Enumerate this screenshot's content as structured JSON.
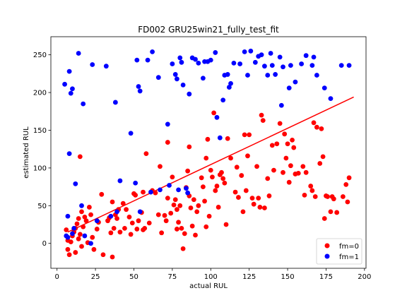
{
  "chart_data": {
    "type": "scatter",
    "title": "FD002 GRU25win21_fully_test_fit",
    "xlabel": "actual RUL",
    "ylabel": "estimated RUL",
    "xlim": [
      -4,
      201
    ],
    "ylim": [
      -33,
      274
    ],
    "xticks": [
      0,
      25,
      50,
      75,
      100,
      125,
      150,
      175,
      200
    ],
    "yticks": [
      0,
      50,
      100,
      150,
      200,
      250
    ],
    "grid": false,
    "legend_position": "lower right",
    "series": [
      {
        "name": "fm=0",
        "color": "#ff0000",
        "points": [
          [
            6,
            18
          ],
          [
            7,
            4
          ],
          [
            7,
            -8
          ],
          [
            8,
            -15
          ],
          [
            9,
            2
          ],
          [
            10,
            10
          ],
          [
            11,
            15
          ],
          [
            12,
            20
          ],
          [
            12,
            -12
          ],
          [
            13,
            26
          ],
          [
            14,
            33
          ],
          [
            14,
            6
          ],
          [
            15,
            115
          ],
          [
            15,
            12
          ],
          [
            16,
            42
          ],
          [
            16,
            -4
          ],
          [
            17,
            22
          ],
          [
            18,
            35
          ],
          [
            19,
            30
          ],
          [
            20,
            1
          ],
          [
            21,
            48
          ],
          [
            22,
            38
          ],
          [
            23,
            8
          ],
          [
            24,
            -8
          ],
          [
            26,
            19
          ],
          [
            27,
            28
          ],
          [
            29,
            65
          ],
          [
            30,
            -15
          ],
          [
            33,
            30
          ],
          [
            34,
            34
          ],
          [
            35,
            14
          ],
          [
            36,
            55
          ],
          [
            36,
            -18
          ],
          [
            37,
            20
          ],
          [
            38,
            38
          ],
          [
            39,
            33
          ],
          [
            40,
            45
          ],
          [
            41,
            15
          ],
          [
            43,
            53
          ],
          [
            44,
            20
          ],
          [
            45,
            45
          ],
          [
            47,
            35
          ],
          [
            48,
            12
          ],
          [
            49,
            27
          ],
          [
            50,
            66
          ],
          [
            51,
            64
          ],
          [
            52,
            19
          ],
          [
            53,
            30
          ],
          [
            55,
            41
          ],
          [
            56,
            68
          ],
          [
            56,
            18
          ],
          [
            57,
            20
          ],
          [
            58,
            119
          ],
          [
            60,
            27
          ],
          [
            62,
            70
          ],
          [
            64,
            67
          ],
          [
            66,
            38
          ],
          [
            67,
            102
          ],
          [
            68,
            14
          ],
          [
            70,
            37
          ],
          [
            71,
            30
          ],
          [
            72,
            60
          ],
          [
            72,
            134
          ],
          [
            74,
            40
          ],
          [
            75,
            88
          ],
          [
            76,
            51
          ],
          [
            77,
            58
          ],
          [
            78,
            45
          ],
          [
            78,
            19
          ],
          [
            79,
            28
          ],
          [
            80,
            50
          ],
          [
            81,
            20
          ],
          [
            82,
            -7
          ],
          [
            83,
            13
          ],
          [
            84,
            74
          ],
          [
            85,
            96
          ],
          [
            86,
            63
          ],
          [
            86,
            128
          ],
          [
            87,
            47
          ],
          [
            88,
            23
          ],
          [
            89,
            58
          ],
          [
            90,
            11
          ],
          [
            91,
            42
          ],
          [
            92,
            50
          ],
          [
            94,
            87
          ],
          [
            95,
            75
          ],
          [
            96,
            56
          ],
          [
            97,
            113
          ],
          [
            97,
            22
          ],
          [
            98,
            138
          ],
          [
            99,
            36
          ],
          [
            100,
            97
          ],
          [
            101,
            88
          ],
          [
            102,
            173
          ],
          [
            103,
            70
          ],
          [
            104,
            76
          ],
          [
            105,
            48
          ],
          [
            106,
            91
          ],
          [
            107,
            94
          ],
          [
            108,
            86
          ],
          [
            109,
            80
          ],
          [
            110,
            25
          ],
          [
            111,
            139
          ],
          [
            113,
            113
          ],
          [
            116,
            68
          ],
          [
            117,
            101
          ],
          [
            118,
            61
          ],
          [
            120,
            90
          ],
          [
            121,
            42
          ],
          [
            122,
            144
          ],
          [
            123,
            70
          ],
          [
            124,
            116
          ],
          [
            125,
            144
          ],
          [
            127,
            60
          ],
          [
            128,
            52
          ],
          [
            130,
            102
          ],
          [
            131,
            60
          ],
          [
            132,
            48
          ],
          [
            133,
            170
          ],
          [
            134,
            163
          ],
          [
            135,
            47
          ],
          [
            137,
            86
          ],
          [
            138,
            63
          ],
          [
            140,
            130
          ],
          [
            141,
            97
          ],
          [
            143,
            132
          ],
          [
            145,
            159
          ],
          [
            147,
            94
          ],
          [
            148,
            145
          ],
          [
            149,
            113
          ],
          [
            150,
            132
          ],
          [
            151,
            81
          ],
          [
            152,
            103
          ],
          [
            153,
            137
          ],
          [
            154,
            127
          ],
          [
            155,
            92
          ],
          [
            157,
            93
          ],
          [
            160,
            102
          ],
          [
            161,
            64
          ],
          [
            162,
            94
          ],
          [
            165,
            76
          ],
          [
            166,
            70
          ],
          [
            167,
            160
          ],
          [
            168,
            62
          ],
          [
            169,
            154
          ],
          [
            171,
            106
          ],
          [
            172,
            152
          ],
          [
            173,
            115
          ],
          [
            174,
            33
          ],
          [
            175,
            63
          ],
          [
            176,
            62
          ],
          [
            178,
            42
          ],
          [
            179,
            62
          ],
          [
            180,
            59
          ],
          [
            182,
            41
          ],
          [
            186,
            62
          ],
          [
            188,
            78
          ],
          [
            189,
            55
          ],
          [
            190,
            87
          ]
        ]
      },
      {
        "name": "fm=1",
        "color": "#0000ff",
        "points": [
          [
            5,
            211
          ],
          [
            6,
            10
          ],
          [
            7,
            36
          ],
          [
            7,
            8
          ],
          [
            8,
            119
          ],
          [
            8,
            228
          ],
          [
            9,
            199
          ],
          [
            10,
            13
          ],
          [
            10,
            205
          ],
          [
            11,
            20
          ],
          [
            12,
            79
          ],
          [
            14,
            252
          ],
          [
            16,
            50
          ],
          [
            17,
            185
          ],
          [
            18,
            10
          ],
          [
            22,
            0
          ],
          [
            23,
            237
          ],
          [
            26,
            30
          ],
          [
            32,
            235
          ],
          [
            35,
            36
          ],
          [
            38,
            187
          ],
          [
            39,
            42
          ],
          [
            41,
            83
          ],
          [
            48,
            146
          ],
          [
            51,
            80
          ],
          [
            52,
            243
          ],
          [
            53,
            208
          ],
          [
            54,
            42
          ],
          [
            54,
            202
          ],
          [
            59,
            243
          ],
          [
            61,
            68
          ],
          [
            62,
            254
          ],
          [
            66,
            220
          ],
          [
            67,
            71
          ],
          [
            72,
            158
          ],
          [
            73,
            77
          ],
          [
            75,
            238
          ],
          [
            77,
            224
          ],
          [
            78,
            218
          ],
          [
            79,
            71
          ],
          [
            80,
            246
          ],
          [
            81,
            240
          ],
          [
            82,
            210
          ],
          [
            84,
            73
          ],
          [
            85,
            67
          ],
          [
            86,
            198
          ],
          [
            88,
            246
          ],
          [
            90,
            244
          ],
          [
            92,
            239
          ],
          [
            95,
            219
          ],
          [
            96,
            241
          ],
          [
            98,
            241
          ],
          [
            100,
            243
          ],
          [
            103,
            253
          ],
          [
            104,
            167
          ],
          [
            106,
            140
          ],
          [
            108,
            190
          ],
          [
            109,
            223
          ],
          [
            111,
            224
          ],
          [
            112,
            207
          ],
          [
            113,
            212
          ],
          [
            115,
            239
          ],
          [
            119,
            238
          ],
          [
            122,
            254
          ],
          [
            124,
            223
          ],
          [
            126,
            255
          ],
          [
            129,
            240
          ],
          [
            131,
            248
          ],
          [
            133,
            250
          ],
          [
            135,
            235
          ],
          [
            137,
            223
          ],
          [
            139,
            252
          ],
          [
            140,
            236
          ],
          [
            142,
            224
          ],
          [
            145,
            247
          ],
          [
            146,
            183
          ],
          [
            147,
            234
          ],
          [
            151,
            206
          ],
          [
            152,
            236
          ],
          [
            155,
            214
          ],
          [
            159,
            238
          ],
          [
            162,
            249
          ],
          [
            166,
            236
          ],
          [
            167,
            247
          ],
          [
            169,
            223
          ],
          [
            174,
            206
          ],
          [
            178,
            192
          ],
          [
            185,
            236
          ],
          [
            190,
            236
          ]
        ]
      }
    ],
    "fit_line": {
      "color": "#ff0000",
      "x": [
        7,
        193
      ],
      "y": [
        15,
        194
      ]
    },
    "legend": [
      "fm=0",
      "fm=1"
    ]
  }
}
